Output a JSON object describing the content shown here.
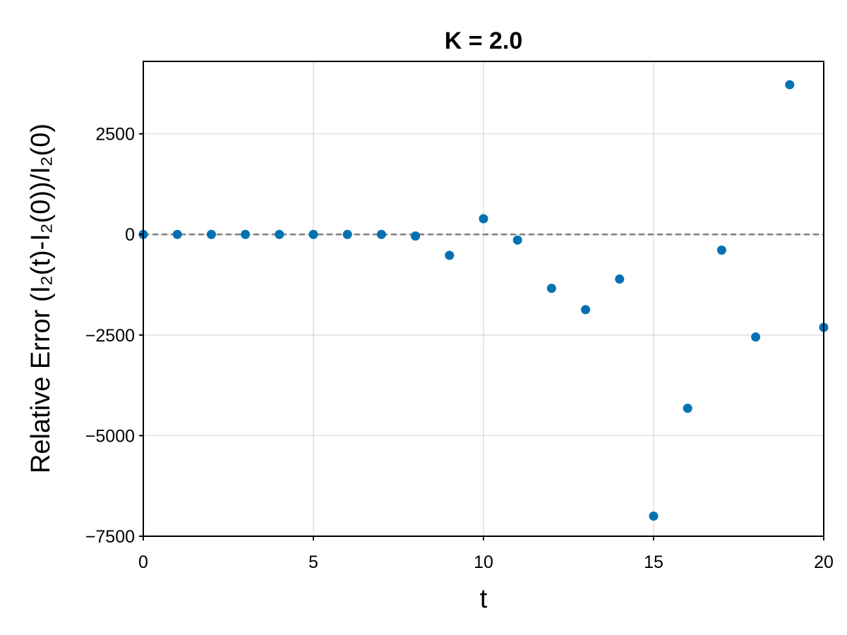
{
  "chart_data": {
    "type": "scatter",
    "title": "K = 2.0",
    "xlabel": "t",
    "ylabel": "Relative Error (I₂(t)-I₂(0))/I₂(0)",
    "xlim": [
      0,
      20
    ],
    "ylim": [
      -7500,
      4300
    ],
    "x_ticks": [
      0,
      5,
      10,
      15,
      20
    ],
    "x_tick_labels": [
      "0",
      "5",
      "10",
      "15",
      "20"
    ],
    "y_ticks": [
      -7500,
      -5000,
      -2500,
      0,
      2500
    ],
    "y_tick_labels": [
      "−7500",
      "−5000",
      "−2500",
      "0",
      "2500"
    ],
    "grid": true,
    "reference_line": {
      "y": 0,
      "style": "dashed",
      "color": "#7f7f7f"
    },
    "series": [
      {
        "color": "#0072b2",
        "x": [
          0,
          1,
          2,
          3,
          4,
          5,
          6,
          7,
          8,
          9,
          10,
          11,
          12,
          13,
          14,
          15,
          16,
          17,
          18,
          19,
          20
        ],
        "y": [
          0,
          0,
          0,
          0,
          0,
          0,
          0,
          0,
          -40,
          -520,
          390,
          -140,
          -1340,
          -1870,
          -1110,
          -7000,
          -4320,
          -390,
          -2550,
          3720,
          -2310
        ]
      }
    ]
  }
}
